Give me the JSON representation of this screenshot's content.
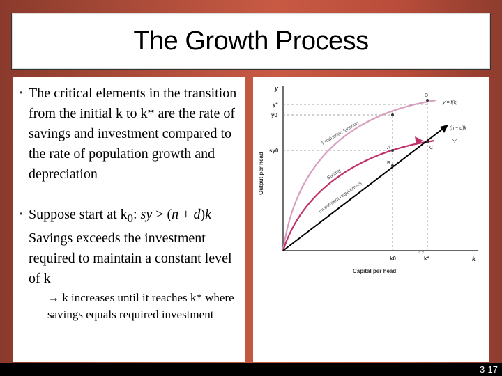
{
  "title": "The Growth Process",
  "bullets": [
    {
      "text": "The critical elements in the transition from the initial k to k* are the rate of savings and investment compared to the rate of population growth and depreciation"
    },
    {
      "prefix": "Suppose start at k",
      "prefix_sub": "0",
      "prefix_colon": ":",
      "math_left": "sy",
      "math_op": " > (",
      "math_n": "n",
      "math_plus": " + ",
      "math_d": "d",
      "math_close": ")",
      "math_k": "k",
      "rest": "Savings exceeds the investment required to maintain a constant level of k"
    }
  ],
  "sub_bullet": {
    "arrow": "→",
    "text": "k increases until it reaches k* where savings equals required investment"
  },
  "diagram": {
    "y_axis_label": "Output per head",
    "x_axis_label": "Capital per head",
    "y_axis_symbol": "y",
    "x_axis_symbol": "k",
    "y_star": "y*",
    "y0": "y0",
    "sy0": "sy0",
    "k0": "k0",
    "k_star": "k*",
    "point_d": "D",
    "point_a": "A",
    "point_b": "B",
    "point_c": "C",
    "curve_production_label": "Production function",
    "curve_fn_label": "y = f(k)",
    "curve_saving_label": "Saving",
    "curve_sy_label": "sy",
    "line_investment_label": "Investment requirement",
    "line_nd_label": "(n + d)k",
    "production_color": "#d9a0c0",
    "saving_color": "#c0306a",
    "line_color": "#000000"
  },
  "page_number": "3-17"
}
